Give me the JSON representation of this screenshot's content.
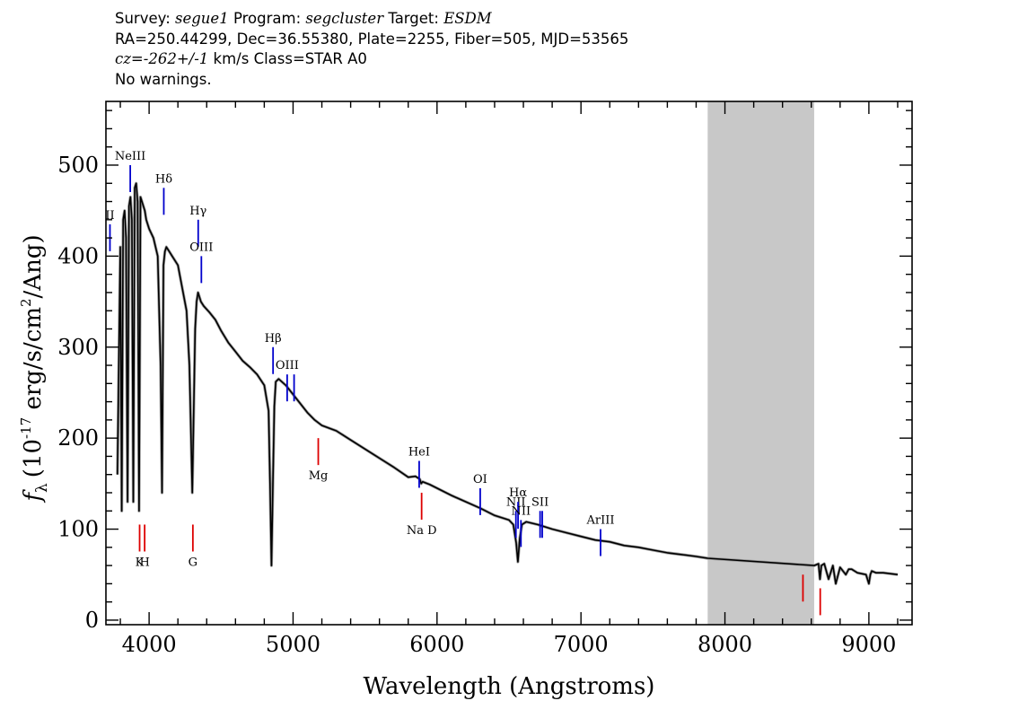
{
  "header": {
    "survey_label": "Survey:",
    "survey": "segue1",
    "program_label": "Program:",
    "program": "segcluster",
    "target_label": "Target:",
    "target": "ESDM",
    "line2": "RA=250.44299, Dec=36.55380, Plate=2255, Fiber=505, MJD=53565",
    "cz_label": "cz=",
    "cz": "-262+/-1",
    "cz_unit": "km/s Class=STAR A0",
    "line4": "No warnings."
  },
  "chart_data": {
    "type": "line",
    "title": "",
    "xlabel": "Wavelength (Angstroms)",
    "ylabel": "fλ (10^-17 erg/s/cm^2/Ang)",
    "ylabel_parts": {
      "f": "f",
      "sub": "λ",
      "a": "(10",
      "exp1": "-17",
      "b": " erg/s/cm",
      "exp2": "2",
      "c": "/Ang)"
    },
    "xlim": [
      3700,
      9300
    ],
    "ylim": [
      -5,
      570
    ],
    "x_ticks": [
      4000,
      5000,
      6000,
      7000,
      8000,
      9000
    ],
    "y_ticks": [
      0,
      100,
      200,
      300,
      400,
      500
    ],
    "x_tick_labels": [
      "4000",
      "5000",
      "6000",
      "7000",
      "8000",
      "9000"
    ],
    "y_tick_labels": [
      "0",
      "100",
      "200",
      "300",
      "400",
      "500"
    ],
    "masked_region": [
      7880,
      8620
    ],
    "series": [
      {
        "color": "#000000",
        "x": [
          3780,
          3800,
          3810,
          3820,
          3830,
          3840,
          3850,
          3860,
          3870,
          3880,
          3890,
          3900,
          3910,
          3920,
          3930,
          3940,
          3950,
          3960,
          3970,
          3980,
          3990,
          4000,
          4030,
          4060,
          4080,
          4090,
          4100,
          4110,
          4120,
          4140,
          4160,
          4200,
          4230,
          4260,
          4280,
          4300,
          4320,
          4330,
          4340,
          4350,
          4360,
          4380,
          4420,
          4460,
          4500,
          4550,
          4600,
          4650,
          4700,
          4750,
          4800,
          4830,
          4840,
          4850,
          4860,
          4870,
          4880,
          4900,
          4950,
          5000,
          5050,
          5100,
          5150,
          5200,
          5300,
          5400,
          5500,
          5600,
          5700,
          5800,
          5850,
          5880,
          5890,
          5900,
          5950,
          6000,
          6100,
          6200,
          6300,
          6400,
          6500,
          6530,
          6550,
          6562,
          6575,
          6590,
          6620,
          6700,
          6800,
          6900,
          7000,
          7100,
          7200,
          7300,
          7400,
          7500,
          7600,
          7700,
          7800,
          7880,
          8620,
          8650,
          8660,
          8670,
          8690,
          8720,
          8750,
          8770,
          8800,
          8840,
          8860,
          8880,
          8920,
          8980,
          9000,
          9010,
          9020,
          9050,
          9100,
          9150,
          9200
        ],
        "y": [
          160,
          410,
          120,
          440,
          450,
          420,
          130,
          455,
          465,
          440,
          130,
          475,
          480,
          460,
          120,
          465,
          460,
          455,
          450,
          440,
          435,
          430,
          420,
          400,
          280,
          140,
          390,
          405,
          410,
          405,
          400,
          390,
          365,
          340,
          280,
          140,
          320,
          350,
          360,
          355,
          350,
          345,
          338,
          330,
          318,
          305,
          295,
          285,
          278,
          270,
          258,
          230,
          150,
          60,
          150,
          235,
          262,
          265,
          258,
          248,
          238,
          228,
          220,
          214,
          208,
          198,
          188,
          178,
          168,
          157,
          158,
          155,
          150,
          152,
          149,
          145,
          137,
          130,
          123,
          115,
          110,
          105,
          85,
          64,
          90,
          105,
          108,
          105,
          100,
          96,
          92,
          88,
          86,
          82,
          80,
          77,
          74,
          72,
          70,
          68,
          60,
          62,
          45,
          60,
          62,
          45,
          60,
          40,
          58,
          50,
          56,
          56,
          52,
          50,
          40,
          50,
          54,
          52,
          52,
          51,
          50
        ]
      }
    ],
    "emission_lines": [
      {
        "label": "NeIII",
        "x": 3869,
        "y": 500,
        "color": "#0000cc"
      },
      {
        "label": "Hδ",
        "x": 4102,
        "y": 475,
        "color": "#0000cc"
      },
      {
        "label": "Hγ",
        "x": 4341,
        "y": 440,
        "color": "#0000cc"
      },
      {
        "label": "OIII",
        "x": 4363,
        "y": 400,
        "color": "#0000cc"
      },
      {
        "label": "II",
        "x": 3728,
        "y": 435,
        "color": "#0000cc"
      },
      {
        "label": "Hβ",
        "x": 4861,
        "y": 300,
        "color": "#0000cc"
      },
      {
        "label": "OIII",
        "x": 4959,
        "y": 270,
        "color": "#0000cc"
      },
      {
        "label": "",
        "x": 5007,
        "y": 270,
        "color": "#0000cc"
      },
      {
        "label": "HeI",
        "x": 5876,
        "y": 175,
        "color": "#0000cc"
      },
      {
        "label": "OI",
        "x": 6300,
        "y": 145,
        "color": "#0000cc"
      },
      {
        "label": "NII",
        "x": 6548,
        "y": 120,
        "color": "#0000cc"
      },
      {
        "label": "Hα",
        "x": 6563,
        "y": 130,
        "color": "#0000cc"
      },
      {
        "label": "NII",
        "x": 6583,
        "y": 110,
        "color": "#0000cc"
      },
      {
        "label": "SII",
        "x": 6716,
        "y": 120,
        "color": "#0000cc"
      },
      {
        "label": "",
        "x": 6731,
        "y": 120,
        "color": "#0000cc"
      },
      {
        "label": "ArIII",
        "x": 7136,
        "y": 100,
        "color": "#0000cc"
      }
    ],
    "absorption_lines": [
      {
        "label": "K",
        "x": 3934,
        "y": 105,
        "color": "#dd0000"
      },
      {
        "label": "H",
        "x": 3969,
        "y": 105,
        "color": "#dd0000"
      },
      {
        "label": "G",
        "x": 4304,
        "y": 105,
        "color": "#dd0000"
      },
      {
        "label": "Mg",
        "x": 5175,
        "y": 200,
        "color": "#dd0000"
      },
      {
        "label": "Na D",
        "x": 5893,
        "y": 140,
        "color": "#dd0000"
      },
      {
        "label": "",
        "x": 8542,
        "y": 50,
        "color": "#dd0000"
      },
      {
        "label": "",
        "x": 8662,
        "y": 35,
        "color": "#dd0000"
      }
    ]
  }
}
